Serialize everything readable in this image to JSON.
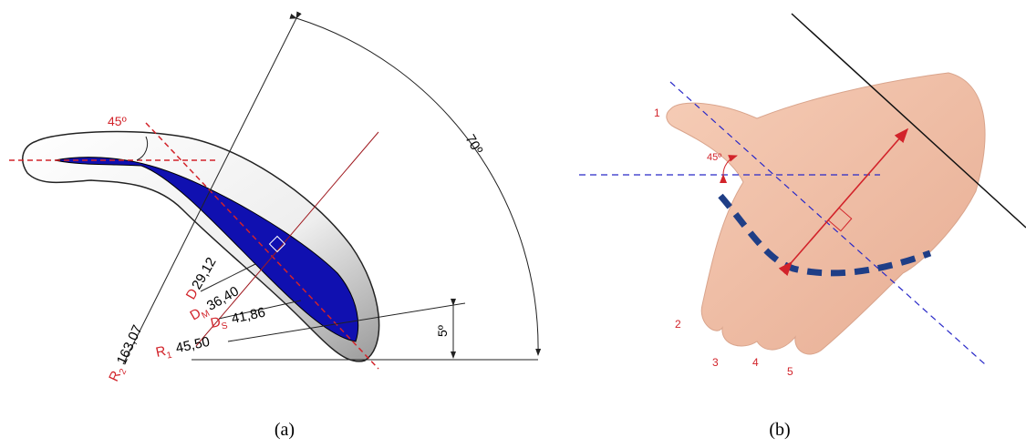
{
  "panel_a": {
    "caption": "(a)",
    "angles": [
      "45º",
      "70º",
      "5º"
    ],
    "dimensions": [
      {
        "symbol": "D",
        "value": "29,12"
      },
      {
        "symbol": "D",
        "subscript": "M",
        "value": "36,40"
      },
      {
        "symbol": "D",
        "subscript": "S",
        "value": "41,86"
      },
      {
        "symbol": "R",
        "subscript": "1",
        "value": "45,50"
      },
      {
        "symbol": "R",
        "subscript": "2",
        "value": "163,07"
      }
    ]
  },
  "panel_b": {
    "caption": "(b)",
    "angle": "45º",
    "finger_labels": [
      "1",
      "2",
      "3",
      "4",
      "5"
    ]
  }
}
